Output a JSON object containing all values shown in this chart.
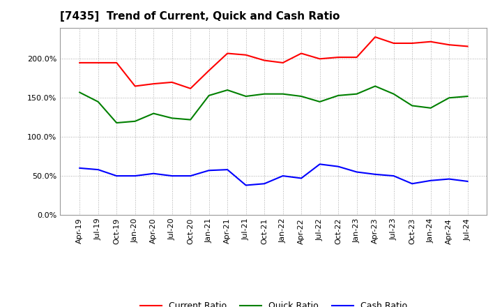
{
  "title": "[7435]  Trend of Current, Quick and Cash Ratio",
  "x_labels": [
    "Apr-19",
    "Jul-19",
    "Oct-19",
    "Jan-20",
    "Apr-20",
    "Jul-20",
    "Oct-20",
    "Jan-21",
    "Apr-21",
    "Jul-21",
    "Oct-21",
    "Jan-22",
    "Apr-22",
    "Jul-22",
    "Oct-22",
    "Jan-23",
    "Apr-23",
    "Jul-23",
    "Oct-23",
    "Jan-24",
    "Apr-24",
    "Jul-24"
  ],
  "current_ratio": [
    195,
    195,
    195,
    165,
    168,
    170,
    162,
    185,
    207,
    205,
    198,
    195,
    207,
    200,
    202,
    202,
    228,
    220,
    220,
    222,
    218,
    216
  ],
  "quick_ratio": [
    157,
    145,
    118,
    120,
    130,
    124,
    122,
    153,
    160,
    152,
    155,
    155,
    152,
    145,
    153,
    155,
    165,
    155,
    140,
    137,
    150,
    152
  ],
  "cash_ratio": [
    60,
    58,
    50,
    50,
    53,
    50,
    50,
    57,
    58,
    38,
    40,
    50,
    47,
    65,
    62,
    55,
    52,
    50,
    40,
    44,
    46,
    43
  ],
  "current_color": "#FF0000",
  "quick_color": "#008000",
  "cash_color": "#0000FF",
  "ylim": [
    0,
    240
  ],
  "yticks": [
    0,
    50,
    100,
    150,
    200
  ],
  "background_color": "#FFFFFF",
  "plot_bg_color": "#FFFFFF",
  "grid_color": "#AAAAAA",
  "line_width": 1.5,
  "title_fontsize": 11,
  "tick_fontsize": 8
}
